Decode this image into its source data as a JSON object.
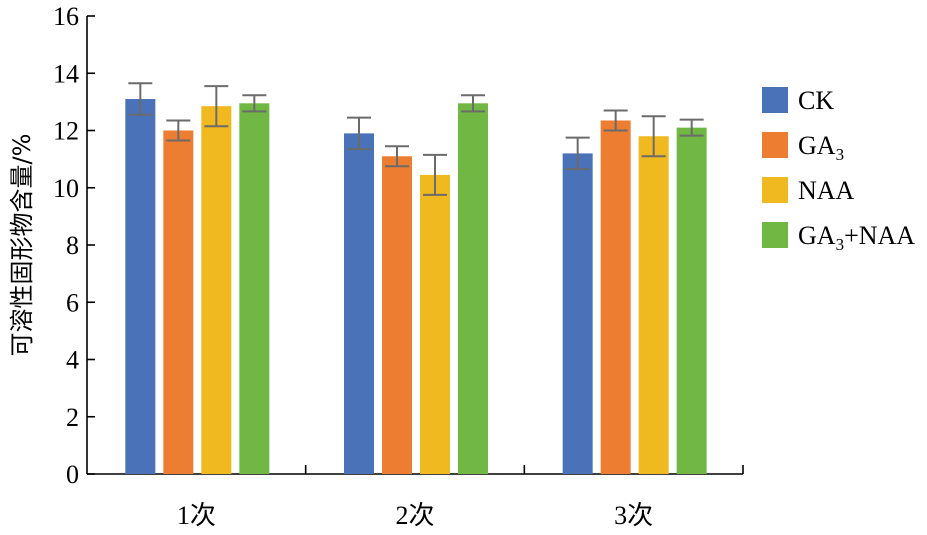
{
  "chart_data": {
    "type": "bar",
    "ylabel": "可溶性固形物含量/%",
    "xlabel": "",
    "title": "",
    "ylim": [
      0,
      16
    ],
    "yticks": [
      0,
      2,
      4,
      6,
      8,
      10,
      12,
      14,
      16
    ],
    "categories": [
      "1次",
      "2次",
      "3次"
    ],
    "series": [
      {
        "name": "CK",
        "label_main": "CK",
        "label_sub": "",
        "label_tail": "",
        "color": "#4a72b8",
        "values": [
          13.1,
          11.9,
          11.2
        ],
        "errors": [
          0.55,
          0.55,
          0.55
        ]
      },
      {
        "name": "GA3",
        "label_main": "GA",
        "label_sub": "3",
        "label_tail": "",
        "color": "#ed7d31",
        "values": [
          12.0,
          11.1,
          12.35
        ],
        "errors": [
          0.35,
          0.35,
          0.35
        ]
      },
      {
        "name": "NAA",
        "label_main": "NAA",
        "label_sub": "",
        "label_tail": "",
        "color": "#f0b91f",
        "values": [
          12.85,
          10.45,
          11.8
        ],
        "errors": [
          0.7,
          0.7,
          0.7
        ]
      },
      {
        "name": "GA3+NAA",
        "label_main": "GA",
        "label_sub": "3",
        "label_tail": "+NAA",
        "color": "#70b843",
        "values": [
          12.95,
          12.95,
          12.1
        ],
        "errors": [
          0.28,
          0.28,
          0.28
        ]
      }
    ],
    "legend_position": "right",
    "grid": false
  }
}
